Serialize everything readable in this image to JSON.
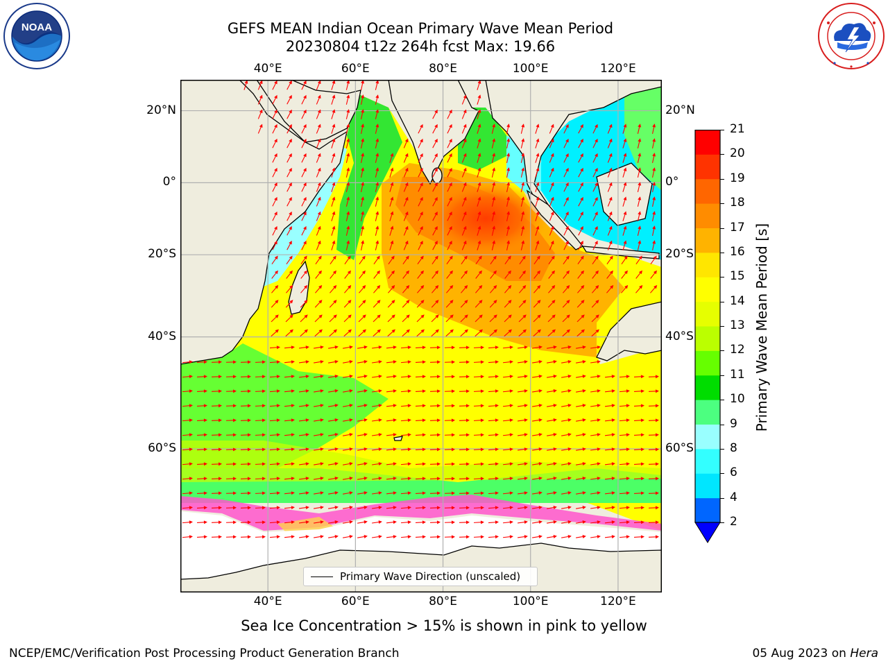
{
  "title": {
    "line1": "GEFS MEAN Indian Ocean Primary Wave Mean Period",
    "line2": "20230804 t12z 264h fcst   Max: 19.66"
  },
  "logos": {
    "left": {
      "name": "noaa-logo",
      "text": "NOAA",
      "ring_text": "NATIONAL OCEANIC AND ATMOSPHERIC ADMINISTRATION · U.S. DEPARTMENT OF COMMERCE"
    },
    "right": {
      "name": "nws-logo",
      "ring_text": "NATIONAL WEATHER SERVICE"
    }
  },
  "map": {
    "lon_range": [
      20,
      130
    ],
    "lat_range": [
      -75,
      28
    ],
    "lon_ticks": [
      {
        "value": 40,
        "label": "40°E"
      },
      {
        "value": 60,
        "label": "60°E"
      },
      {
        "value": 80,
        "label": "80°E"
      },
      {
        "value": 100,
        "label": "100°E"
      },
      {
        "value": 120,
        "label": "120°E"
      }
    ],
    "lat_ticks": [
      {
        "value": 20,
        "label": "20°N"
      },
      {
        "value": 0,
        "label": "0°"
      },
      {
        "value": -20,
        "label": "20°S"
      },
      {
        "value": -40,
        "label": "40°S"
      },
      {
        "value": -60,
        "label": "60°S"
      }
    ],
    "grid": true,
    "land_color": "#efedde",
    "arrow_color": "#ff0000",
    "legend": {
      "label": "Primary Wave Direction (unscaled)",
      "placement": "bottom-center"
    }
  },
  "colorbar": {
    "title": "Primary Wave Mean Period [s]",
    "tick_labels": [
      "2",
      "4",
      "6",
      "8",
      "9",
      "10",
      "11",
      "12",
      "13",
      "14",
      "15",
      "16",
      "17",
      "18",
      "19",
      "20",
      "21"
    ],
    "colors": [
      "#0066ff",
      "#00e6ff",
      "#33ffff",
      "#99ffff",
      "#4cff80",
      "#00dd00",
      "#66ff00",
      "#bbff00",
      "#e6ff00",
      "#ffff00",
      "#ffe600",
      "#ffb300",
      "#ff8c00",
      "#ff6600",
      "#ff3300",
      "#ff0000"
    ],
    "extend_min_color": "#0000ff"
  },
  "caption": "Sea Ice Concentration > 15% is shown in pink to yellow",
  "footer": {
    "left": "NCEP/EMC/Verification Post Processing Product Generation Branch",
    "right_date": "05 Aug 2023 on ",
    "right_machine": "Hera"
  }
}
